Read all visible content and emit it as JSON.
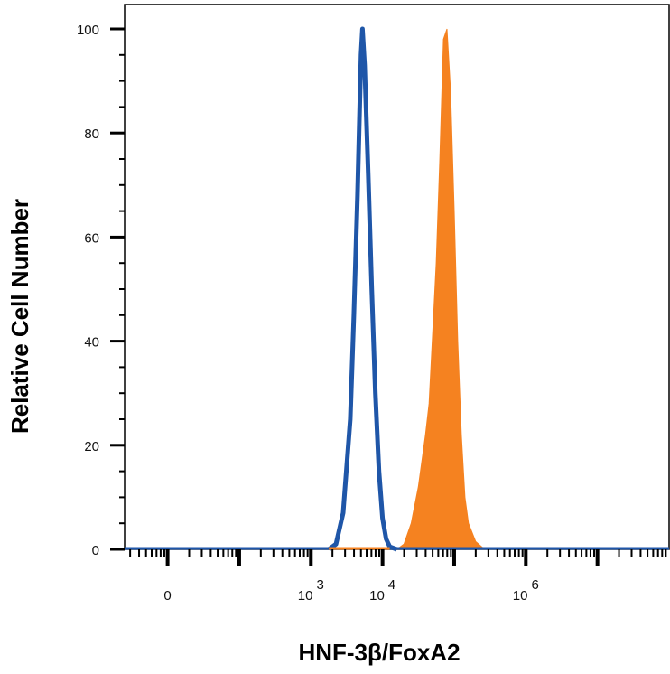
{
  "chart_data": {
    "type": "area",
    "title": "",
    "xlabel": "HNF-3β/FoxA2",
    "ylabel": "Relative Cell Number",
    "x_scale": "log",
    "xlim": [
      0.4,
      8.0
    ],
    "ylim": [
      0,
      100
    ],
    "y_ticks": [
      0,
      20,
      40,
      60,
      80,
      100
    ],
    "x_tick_labels": [
      {
        "base": "0",
        "exp": "",
        "at": 1.0
      },
      {
        "base": "10",
        "exp": "3",
        "at": 3.0
      },
      {
        "base": "10",
        "exp": "4",
        "at": 4.0
      },
      {
        "base": "10",
        "exp": "6",
        "at": 6.0
      }
    ],
    "grid": false,
    "legend": "none",
    "series": [
      {
        "style": "outline",
        "color": "#1f56a8",
        "x": [
          3.25,
          3.35,
          3.45,
          3.55,
          3.6,
          3.65,
          3.7,
          3.72,
          3.75,
          3.8,
          3.85,
          3.9,
          3.95,
          4.0,
          4.05,
          4.1,
          4.2
        ],
        "y": [
          0,
          1,
          7,
          25,
          45,
          68,
          95,
          100,
          93,
          72,
          50,
          30,
          15,
          6,
          2,
          0.5,
          0
        ]
      },
      {
        "style": "filled",
        "color": "#f58220",
        "x": [
          4.2,
          4.3,
          4.4,
          4.5,
          4.6,
          4.65,
          4.75,
          4.8,
          4.85,
          4.9,
          4.95,
          5.0,
          5.05,
          5.1,
          5.15,
          5.2,
          5.3,
          5.4,
          5.5
        ],
        "y": [
          0,
          1,
          5,
          12,
          22,
          28,
          55,
          75,
          98,
          100,
          88,
          65,
          40,
          22,
          10,
          5,
          1.5,
          0.3,
          0
        ]
      }
    ]
  }
}
